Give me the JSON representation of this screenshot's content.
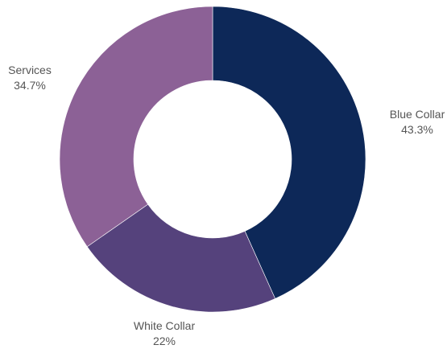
{
  "chart_data": {
    "type": "pie",
    "donut": true,
    "slices": [
      {
        "label": "Blue Collar",
        "value_label": "43.3%",
        "value": 43.3,
        "color": "#0d2858"
      },
      {
        "label": "White Collar",
        "value_label": "22%",
        "value": 22.0,
        "color": "#55427c"
      },
      {
        "label": "Services",
        "value_label": "34.7%",
        "value": 34.7,
        "color": "#8c6196"
      }
    ],
    "start": "12 o'clock",
    "direction": "clockwise",
    "legend": "none"
  }
}
